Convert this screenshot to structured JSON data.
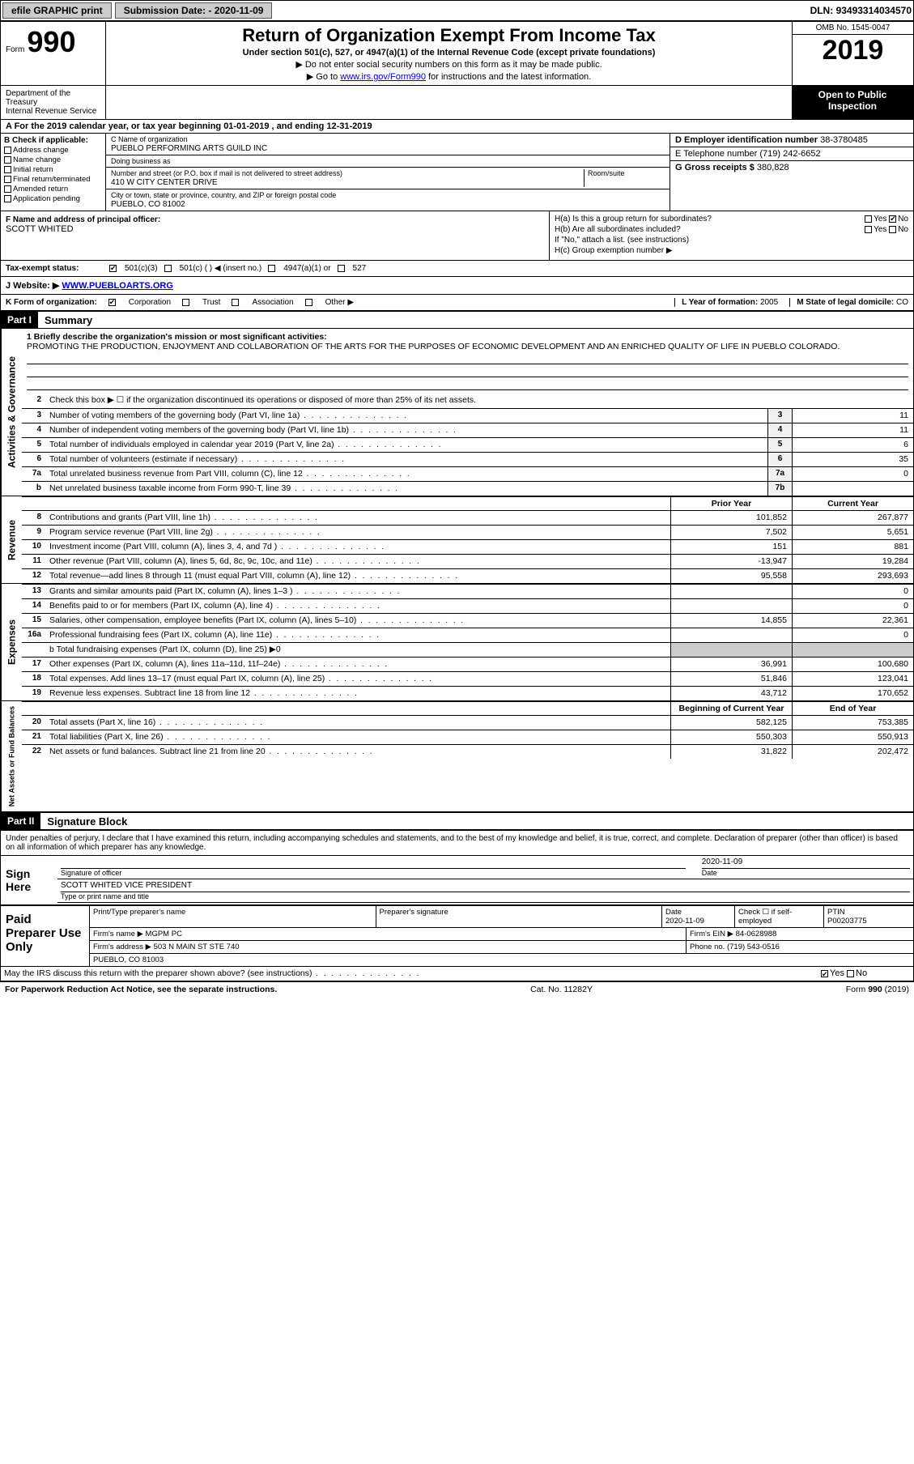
{
  "topbar": {
    "efile": "efile GRAPHIC print",
    "submission_label": "Submission Date: - ",
    "submission_date": "2020-11-09",
    "dln_label": "DLN: ",
    "dln": "93493314034570"
  },
  "header": {
    "form_label": "Form",
    "form_num": "990",
    "title": "Return of Organization Exempt From Income Tax",
    "subtitle": "Under section 501(c), 527, or 4947(a)(1) of the Internal Revenue Code (except private foundations)",
    "note1": "▶ Do not enter social security numbers on this form as it may be made public.",
    "note2_pre": "▶ Go to ",
    "note2_link": "www.irs.gov/Form990",
    "note2_post": " for instructions and the latest information.",
    "omb": "OMB No. 1545-0047",
    "year": "2019",
    "dept1": "Department of the Treasury",
    "dept2": "Internal Revenue Service",
    "open": "Open to Public Inspection"
  },
  "period": "A For the 2019 calendar year, or tax year beginning 01-01-2019    , and ending 12-31-2019",
  "blockB": {
    "hdr": "B Check if applicable:",
    "opts": [
      "Address change",
      "Name change",
      "Initial return",
      "Final return/terminated",
      "Amended return",
      "Application pending"
    ]
  },
  "blockC": {
    "name_lbl": "C Name of organization",
    "name": "PUEBLO PERFORMING ARTS GUILD INC",
    "dba_lbl": "Doing business as",
    "dba": "",
    "street_lbl": "Number and street (or P.O. box if mail is not delivered to street address)",
    "room_lbl": "Room/suite",
    "street": "410 W CITY CENTER DRIVE",
    "city_lbl": "City or town, state or province, country, and ZIP or foreign postal code",
    "city": "PUEBLO, CO  81002"
  },
  "blockD": {
    "ein_lbl": "D Employer identification number",
    "ein": "38-3780485",
    "tel_lbl": "E Telephone number",
    "tel": "(719) 242-6652",
    "gross_lbl": "G Gross receipts $ ",
    "gross": "380,828"
  },
  "principal": {
    "lbl": "F  Name and address of principal officer:",
    "name": "SCOTT WHITED"
  },
  "hblock": {
    "ha": "H(a)  Is this a group return for subordinates?",
    "hb": "H(b)  Are all subordinates included?",
    "hb_note": "If \"No,\" attach a list. (see instructions)",
    "hc": "H(c)  Group exemption number ▶",
    "yes": "Yes",
    "no": "No"
  },
  "taxstatus": {
    "lbl": "Tax-exempt status:",
    "c3": "501(c)(3)",
    "c": "501(c) (  ) ◀ (insert no.)",
    "a1": "4947(a)(1) or",
    "s527": "527"
  },
  "website": {
    "lbl": "J    Website: ▶",
    "val": "WWW.PUEBLOARTS.ORG"
  },
  "korg": {
    "lbl": "K Form of organization:",
    "corp": "Corporation",
    "trust": "Trust",
    "assoc": "Association",
    "other": "Other ▶",
    "yof_lbl": "L Year of formation: ",
    "yof": "2005",
    "dom_lbl": "M State of legal domicile: ",
    "dom": "CO"
  },
  "parts": {
    "p1": "Part I",
    "p1t": "Summary",
    "p2": "Part II",
    "p2t": "Signature Block"
  },
  "summary": {
    "brief_lbl": "1  Briefly describe the organization's mission or most significant activities:",
    "brief": "PROMOTING THE PRODUCTION, ENJOYMENT AND COLLABORATION OF THE ARTS FOR THE PURPOSES OF ECONOMIC DEVELOPMENT AND AN ENRICHED QUALITY OF LIFE IN PUEBLO COLORADO.",
    "l2": "Check this box ▶ ☐  if the organization discontinued its operations or disposed of more than 25% of its net assets.",
    "lines_ag": [
      {
        "n": "3",
        "t": "Number of voting members of the governing body (Part VI, line 1a)",
        "box": "3",
        "v": "11"
      },
      {
        "n": "4",
        "t": "Number of independent voting members of the governing body (Part VI, line 1b)",
        "box": "4",
        "v": "11"
      },
      {
        "n": "5",
        "t": "Total number of individuals employed in calendar year 2019 (Part V, line 2a)",
        "box": "5",
        "v": "6"
      },
      {
        "n": "6",
        "t": "Total number of volunteers (estimate if necessary)",
        "box": "6",
        "v": "35"
      },
      {
        "n": "7a",
        "t": "Total unrelated business revenue from Part VIII, column (C), line 12",
        "box": "7a",
        "v": "0"
      },
      {
        "n": "b",
        "t": "Net unrelated business taxable income from Form 990-T, line 39",
        "box": "7b",
        "v": ""
      }
    ],
    "prior_hdr": "Prior Year",
    "curr_hdr": "Current Year",
    "revenue": [
      {
        "n": "8",
        "t": "Contributions and grants (Part VIII, line 1h)",
        "p": "101,852",
        "c": "267,877"
      },
      {
        "n": "9",
        "t": "Program service revenue (Part VIII, line 2g)",
        "p": "7,502",
        "c": "5,651"
      },
      {
        "n": "10",
        "t": "Investment income (Part VIII, column (A), lines 3, 4, and 7d )",
        "p": "151",
        "c": "881"
      },
      {
        "n": "11",
        "t": "Other revenue (Part VIII, column (A), lines 5, 6d, 8c, 9c, 10c, and 11e)",
        "p": "-13,947",
        "c": "19,284"
      },
      {
        "n": "12",
        "t": "Total revenue—add lines 8 through 11 (must equal Part VIII, column (A), line 12)",
        "p": "95,558",
        "c": "293,693"
      }
    ],
    "expenses": [
      {
        "n": "13",
        "t": "Grants and similar amounts paid (Part IX, column (A), lines 1–3 )",
        "p": "",
        "c": "0"
      },
      {
        "n": "14",
        "t": "Benefits paid to or for members (Part IX, column (A), line 4)",
        "p": "",
        "c": "0"
      },
      {
        "n": "15",
        "t": "Salaries, other compensation, employee benefits (Part IX, column (A), lines 5–10)",
        "p": "14,855",
        "c": "22,361"
      },
      {
        "n": "16a",
        "t": "Professional fundraising fees (Part IX, column (A), line 11e)",
        "p": "",
        "c": "0"
      }
    ],
    "exp_b": "b  Total fundraising expenses (Part IX, column (D), line 25) ▶0",
    "expenses2": [
      {
        "n": "17",
        "t": "Other expenses (Part IX, column (A), lines 11a–11d, 11f–24e)",
        "p": "36,991",
        "c": "100,680"
      },
      {
        "n": "18",
        "t": "Total expenses. Add lines 13–17 (must equal Part IX, column (A), line 25)",
        "p": "51,846",
        "c": "123,041"
      },
      {
        "n": "19",
        "t": "Revenue less expenses. Subtract line 18 from line 12",
        "p": "43,712",
        "c": "170,652"
      }
    ],
    "bcy_hdr": "Beginning of Current Year",
    "eoy_hdr": "End of Year",
    "netassets": [
      {
        "n": "20",
        "t": "Total assets (Part X, line 16)",
        "p": "582,125",
        "c": "753,385"
      },
      {
        "n": "21",
        "t": "Total liabilities (Part X, line 26)",
        "p": "550,303",
        "c": "550,913"
      },
      {
        "n": "22",
        "t": "Net assets or fund balances. Subtract line 21 from line 20",
        "p": "31,822",
        "c": "202,472"
      }
    ]
  },
  "sidelabels": {
    "ag": "Activities & Governance",
    "rev": "Revenue",
    "exp": "Expenses",
    "na": "Net Assets or Fund Balances"
  },
  "sig": {
    "penalty": "Under penalties of perjury, I declare that I have examined this return, including accompanying schedules and statements, and to the best of my knowledge and belief, it is true, correct, and complete. Declaration of preparer (other than officer) is based on all information of which preparer has any knowledge.",
    "sign_here": "Sign Here",
    "sig_officer": "Signature of officer",
    "date_lbl": "Date",
    "sig_date": "2020-11-09",
    "name_title": "SCOTT WHITED  VICE PRESIDENT",
    "name_title_lbl": "Type or print name and title"
  },
  "prep": {
    "hdr": "Paid Preparer Use Only",
    "pname_lbl": "Print/Type preparer's name",
    "psig_lbl": "Preparer's signature",
    "pdate_lbl": "Date",
    "pdate": "2020-11-09",
    "pcheck": "Check ☐  if self-employed",
    "ptin_lbl": "PTIN",
    "ptin": "P00203775",
    "firm_lbl": "Firm's name    ▶ ",
    "firm": "MGPM PC",
    "fein_lbl": "Firm's EIN ▶ ",
    "fein": "84-0628988",
    "addr_lbl": "Firm's address ▶ ",
    "addr1": "503 N MAIN ST STE 740",
    "addr2": "PUEBLO, CO  81003",
    "phone_lbl": "Phone no. ",
    "phone": "(719) 543-0516",
    "discuss": "May the IRS discuss this return with the preparer shown above? (see instructions)",
    "discuss_yes": "Yes",
    "discuss_no": "No"
  },
  "footer": {
    "left": "For Paperwork Reduction Act Notice, see the separate instructions.",
    "mid": "Cat. No. 11282Y",
    "right": "Form 990 (2019)"
  }
}
